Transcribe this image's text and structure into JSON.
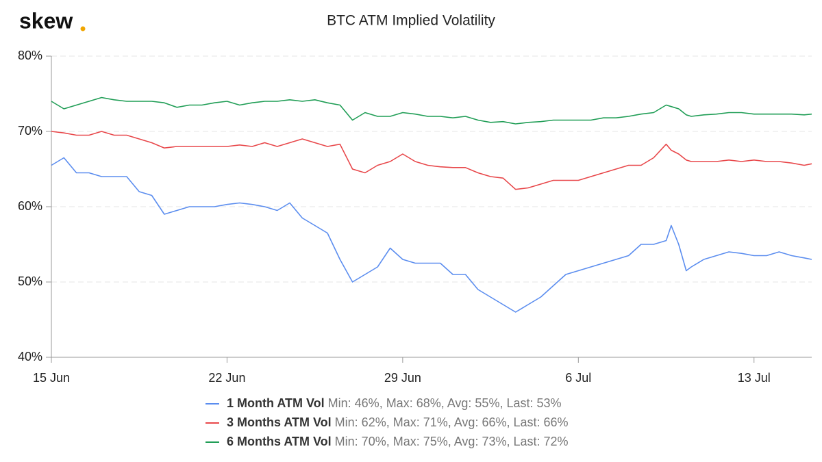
{
  "logo": "skew",
  "chart_data": {
    "type": "line",
    "title": "BTC ATM Implied Volatility",
    "x": [
      0,
      0.5,
      1,
      1.5,
      2,
      2.5,
      3,
      3.5,
      4,
      4.5,
      5,
      5.5,
      6,
      6.5,
      7,
      7.5,
      8,
      8.5,
      9,
      9.5,
      10,
      10.5,
      11,
      11.5,
      12,
      12.5,
      13,
      13.5,
      14,
      14.5,
      15,
      15.5,
      16,
      16.5,
      17,
      17.5,
      18,
      18.5,
      19,
      19.5,
      20,
      20.5,
      21,
      21.5,
      22,
      22.5,
      23,
      23.5,
      24,
      24.5,
      24.7,
      25,
      25.3,
      25.5,
      26,
      26.5,
      27,
      27.5,
      28,
      28.5,
      29,
      29.5,
      30,
      30.3
    ],
    "xlim": [
      0,
      30.3
    ],
    "xticks": [
      {
        "value": 0,
        "label": "15 Jun"
      },
      {
        "value": 7,
        "label": "22 Jun"
      },
      {
        "value": 14,
        "label": "29 Jun"
      },
      {
        "value": 21,
        "label": "6 Jul"
      },
      {
        "value": 28,
        "label": "13 Jul"
      }
    ],
    "ylim": [
      40,
      80
    ],
    "yticks": [
      {
        "value": 40,
        "label": "40%"
      },
      {
        "value": 50,
        "label": "50%"
      },
      {
        "value": 60,
        "label": "60%"
      },
      {
        "value": 70,
        "label": "70%"
      },
      {
        "value": 80,
        "label": "80%"
      }
    ],
    "grid": true,
    "series": [
      {
        "name": "1 Month ATM Vol",
        "stats": "Min: 46%, Max: 68%, Avg: 55%, Last: 53%",
        "color": "#5b8def",
        "values": [
          65.5,
          66.5,
          64.5,
          64.5,
          64,
          64,
          64,
          62,
          61.5,
          59,
          59.5,
          60,
          60,
          60,
          60.3,
          60.5,
          60.3,
          60,
          59.5,
          60.5,
          58.5,
          57.5,
          56.5,
          53,
          50,
          51,
          52,
          54.5,
          53,
          52.5,
          52.5,
          52.5,
          51,
          51,
          49,
          48,
          47,
          46,
          47,
          48,
          49.5,
          51,
          51.5,
          52,
          52.5,
          53,
          53.5,
          55,
          55,
          55.5,
          57.5,
          55,
          51.5,
          52,
          53,
          53.5,
          54,
          53.8,
          53.5,
          53.5,
          54,
          53.5,
          53.2,
          53
        ]
      },
      {
        "name": "3 Months ATM Vol",
        "stats": "Min: 62%, Max: 71%, Avg: 66%, Last: 66%",
        "color": "#e8474a",
        "values": [
          70,
          69.8,
          69.5,
          69.5,
          70,
          69.5,
          69.5,
          69,
          68.5,
          67.8,
          68,
          68,
          68,
          68,
          68,
          68.2,
          68,
          68.5,
          68,
          68.5,
          69,
          68.5,
          68,
          68.3,
          65,
          64.5,
          65.5,
          66,
          67,
          66,
          65.5,
          65.3,
          65.2,
          65.2,
          64.5,
          64,
          63.8,
          62.3,
          62.5,
          63,
          63.5,
          63.5,
          63.5,
          64,
          64.5,
          65,
          65.5,
          65.5,
          66.5,
          68.3,
          67.5,
          67,
          66.2,
          66,
          66,
          66,
          66.2,
          66,
          66.2,
          66,
          66,
          65.8,
          65.5,
          65.7
        ]
      },
      {
        "name": "6 Months ATM Vol",
        "stats": "Min: 70%, Max: 75%, Avg: 73%, Last: 72%",
        "color": "#1f9d55",
        "values": [
          74,
          73,
          73.5,
          74,
          74.5,
          74.2,
          74,
          74,
          74,
          73.8,
          73.2,
          73.5,
          73.5,
          73.8,
          74,
          73.5,
          73.8,
          74,
          74,
          74.2,
          74,
          74.2,
          73.8,
          73.5,
          71.5,
          72.5,
          72,
          72,
          72.5,
          72.3,
          72,
          72,
          71.8,
          72,
          71.5,
          71.2,
          71.3,
          71,
          71.2,
          71.3,
          71.5,
          71.5,
          71.5,
          71.5,
          71.8,
          71.8,
          72,
          72.3,
          72.5,
          73.5,
          73.3,
          73,
          72.2,
          72,
          72.2,
          72.3,
          72.5,
          72.5,
          72.3,
          72.3,
          72.3,
          72.3,
          72.2,
          72.3
        ]
      }
    ]
  }
}
